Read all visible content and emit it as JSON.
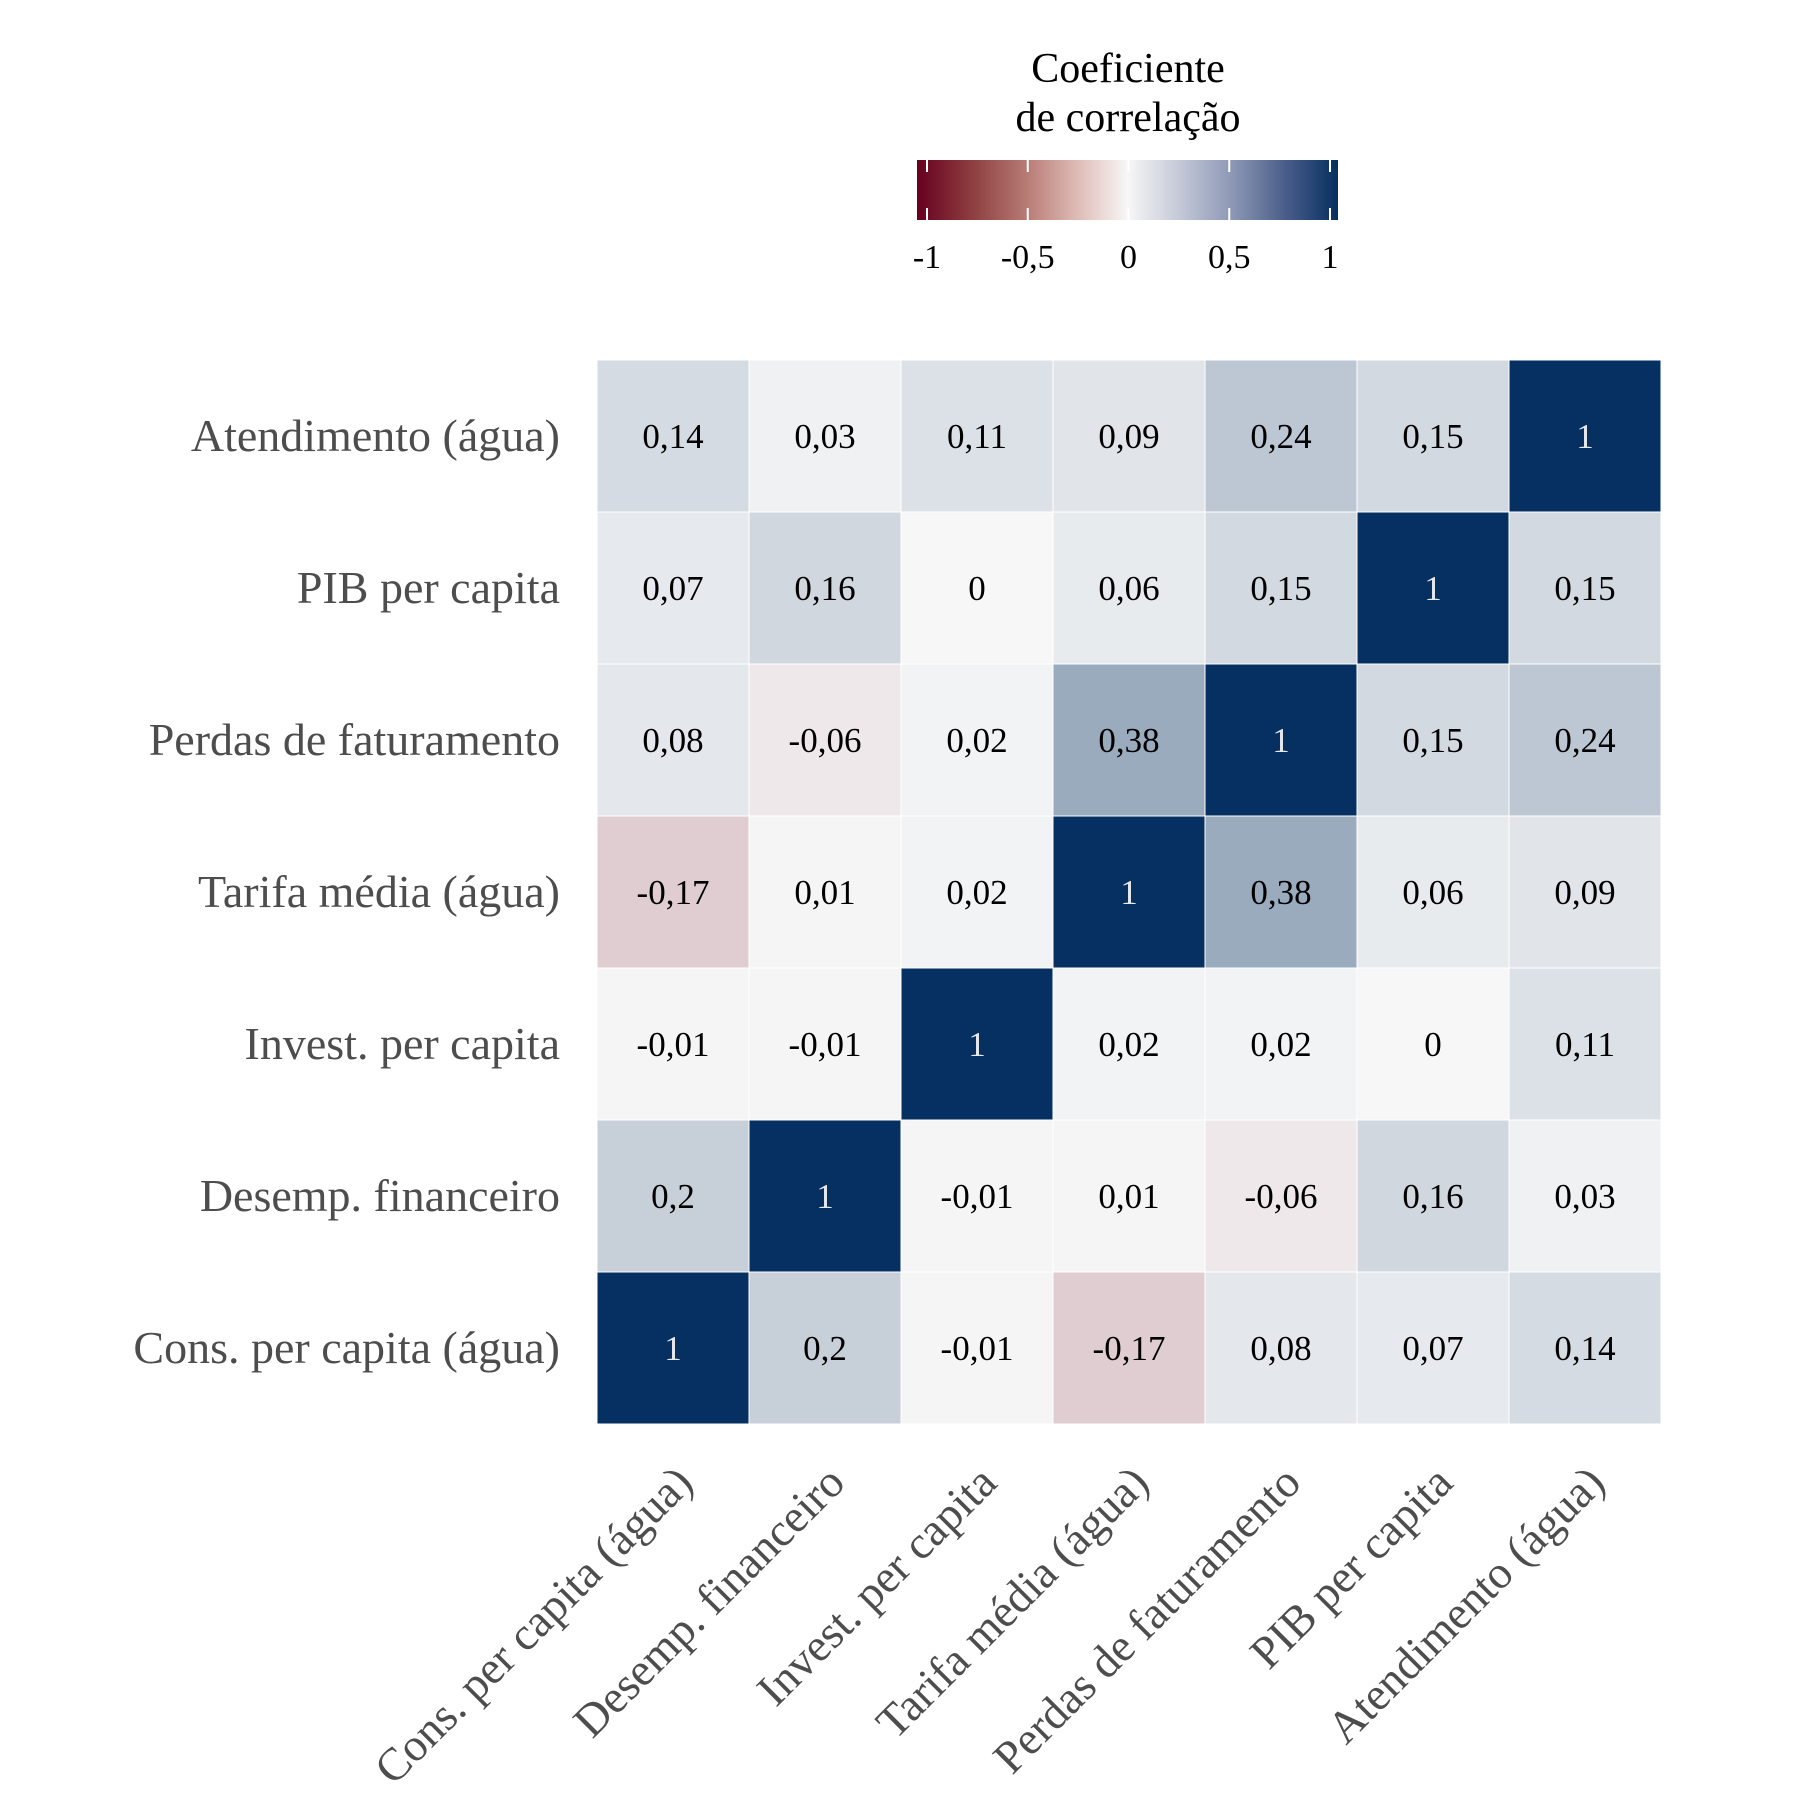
{
  "chart_data": {
    "type": "heatmap",
    "legend": {
      "title_lines": [
        "Coeficiente",
        "de correlação"
      ],
      "ticks": [
        -1,
        -0.5,
        0,
        0.5,
        1
      ],
      "tick_labels": [
        "-1",
        "-0,5",
        "0",
        "0,5",
        "1"
      ],
      "range": [
        -1,
        1
      ],
      "placement": "top",
      "colors": {
        "low": "#67001f",
        "mid": "#f7f7f7",
        "high": "#053061"
      }
    },
    "x_categories": [
      "Cons. per capita (água)",
      "Desemp. financeiro",
      "Invest. per capita",
      "Tarifa média (água)",
      "Perdas de faturamento",
      "PIB per capita",
      "Atendimento (água)"
    ],
    "y_categories_top_to_bottom": [
      "Atendimento (água)",
      "PIB per capita",
      "Perdas de faturamento",
      "Tarifa média (água)",
      "Invest. per capita",
      "Desemp. financeiro",
      "Cons. per capita (água)"
    ],
    "values": [
      [
        0.14,
        0.03,
        0.11,
        0.09,
        0.24,
        0.15,
        1
      ],
      [
        0.07,
        0.16,
        0,
        0.06,
        0.15,
        1,
        0.15
      ],
      [
        0.08,
        -0.06,
        0.02,
        0.38,
        1,
        0.15,
        0.24
      ],
      [
        -0.17,
        0.01,
        0.02,
        1,
        0.38,
        0.06,
        0.09
      ],
      [
        -0.01,
        -0.01,
        1,
        0.02,
        0.02,
        0,
        0.11
      ],
      [
        0.2,
        1,
        -0.01,
        0.01,
        -0.06,
        0.16,
        0.03
      ],
      [
        1,
        0.2,
        -0.01,
        -0.17,
        0.08,
        0.07,
        0.14
      ]
    ],
    "value_labels": [
      [
        "0,14",
        "0,03",
        "0,11",
        "0,09",
        "0,24",
        "0,15",
        "1"
      ],
      [
        "0,07",
        "0,16",
        "0",
        "0,06",
        "0,15",
        "1",
        "0,15"
      ],
      [
        "0,08",
        "-0,06",
        "0,02",
        "0,38",
        "1",
        "0,15",
        "0,24"
      ],
      [
        "-0,17",
        "0,01",
        "0,02",
        "1",
        "0,38",
        "0,06",
        "0,09"
      ],
      [
        "-0,01",
        "-0,01",
        "1",
        "0,02",
        "0,02",
        "0",
        "0,11"
      ],
      [
        "0,2",
        "1",
        "-0,01",
        "0,01",
        "-0,06",
        "0,16",
        "0,03"
      ],
      [
        "1",
        "0,2",
        "-0,01",
        "-0,17",
        "0,08",
        "0,07",
        "0,14"
      ]
    ]
  }
}
